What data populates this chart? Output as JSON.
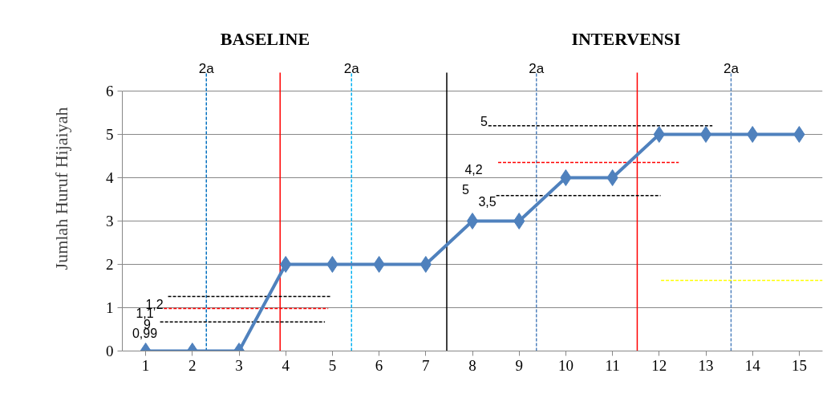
{
  "chart_data": {
    "type": "line",
    "ylabel": "Jumlah Huruf Hijaiyah",
    "annotations": [
      "BASELINE",
      "INTERVENSI",
      "1,2",
      "1,1",
      "9",
      "0,99",
      "5",
      "4,2",
      "5",
      "3,5"
    ],
    "x": [
      1,
      2,
      3,
      4,
      5,
      6,
      7,
      8,
      9,
      10,
      11,
      12,
      13,
      14,
      15
    ],
    "xlim": [
      0.5,
      15.5
    ],
    "xticks": [
      1,
      2,
      3,
      4,
      5,
      6,
      7,
      8,
      9,
      10,
      11,
      12,
      13,
      14,
      15
    ],
    "ylim": [
      0,
      6
    ],
    "yticks": [
      0,
      1,
      2,
      3,
      4,
      5,
      6
    ],
    "grid": "y",
    "series": [
      {
        "color": "#4f81bd",
        "marker": "diamond",
        "line_style": "solid",
        "values": [
          0,
          0,
          0,
          2,
          2,
          2,
          2,
          3,
          3,
          4,
          4,
          5,
          5,
          5,
          5
        ]
      },
      {
        "type": "line",
        "color": "#000000",
        "marker": "none",
        "line_style": "dashed",
        "x": [
          1.48,
          4.96
        ],
        "values": [
          1.26,
          1.26
        ]
      },
      {
        "type": "line",
        "color": "#ff0000",
        "marker": "none",
        "line_style": "dashed",
        "x": [
          1.39,
          4.91
        ],
        "values": [
          0.98,
          0.98
        ]
      },
      {
        "type": "line",
        "color": "#000000",
        "marker": "none",
        "line_style": "dashed",
        "x": [
          1.31,
          4.84
        ],
        "values": [
          0.67,
          0.67
        ]
      },
      {
        "type": "line",
        "color": "#000000",
        "marker": "none",
        "line_style": "dashed",
        "x": [
          8.34,
          13.14
        ],
        "values": [
          5.2,
          5.2
        ]
      },
      {
        "type": "line",
        "color": "#ff0000",
        "marker": "none",
        "line_style": "dashed",
        "x": [
          8.55,
          12.42
        ],
        "values": [
          4.35,
          4.35
        ]
      },
      {
        "type": "line",
        "color": "#000000",
        "marker": "none",
        "line_style": "dashed",
        "x": [
          8.51,
          12.03
        ],
        "values": [
          3.59,
          3.59
        ]
      },
      {
        "type": "line",
        "color": "#ffff00",
        "marker": "none",
        "line_style": "dashed",
        "x": [
          12.04,
          15.5
        ],
        "values": [
          1.63,
          1.63
        ]
      }
    ],
    "ref_lines": [
      {
        "axis": "x",
        "value": 2.3,
        "label": "2a",
        "color": "#0070c0",
        "line_style": "dashed"
      },
      {
        "axis": "x",
        "value": 3.88,
        "label": null,
        "color": "#ff0000",
        "line_style": "solid"
      },
      {
        "axis": "x",
        "value": 5.41,
        "label": "2a",
        "color": "#00b0f0",
        "line_style": "dashed"
      },
      {
        "axis": "x",
        "value": 7.45,
        "label": null,
        "color": "#000000",
        "line_style": "solid"
      },
      {
        "axis": "x",
        "value": 9.37,
        "label": "2a",
        "color": "#4f81bd",
        "line_style": "dashed"
      },
      {
        "axis": "x",
        "value": 11.53,
        "label": null,
        "color": "#ff0000",
        "line_style": "solid"
      },
      {
        "axis": "x",
        "value": 13.54,
        "label": "2a",
        "color": "#4f81bd",
        "line_style": "dashed"
      }
    ]
  }
}
